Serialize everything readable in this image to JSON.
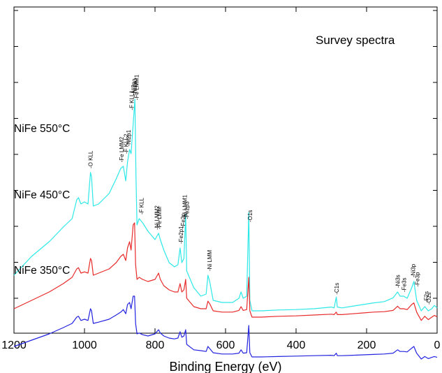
{
  "chart_data": {
    "type": "line",
    "title": "Survey spectra",
    "xlabel": "Binding Energy (eV)",
    "ylabel": "",
    "xlim": [
      1200,
      0
    ],
    "x_reversed": true,
    "x_ticks": [
      1200,
      1000,
      800,
      600,
      400,
      200,
      0
    ],
    "y_ticks_labeled": false,
    "series": [
      {
        "name": "NiFe 550°C",
        "color": "#2ee8e8",
        "points": [
          [
            1200,
            0.1
          ],
          [
            1150,
            0.145
          ],
          [
            1100,
            0.18
          ],
          [
            1060,
            0.215
          ],
          [
            1035,
            0.235
          ],
          [
            1022,
            0.28
          ],
          [
            1017,
            0.285
          ],
          [
            1010,
            0.27
          ],
          [
            1000,
            0.275
          ],
          [
            990,
            0.27
          ],
          [
            983,
            0.345
          ],
          [
            980,
            0.335
          ],
          [
            975,
            0.265
          ],
          [
            960,
            0.27
          ],
          [
            930,
            0.295
          ],
          [
            910,
            0.33
          ],
          [
            897,
            0.355
          ],
          [
            890,
            0.36
          ],
          [
            883,
            0.325
          ],
          [
            878,
            0.37
          ],
          [
            872,
            0.4
          ],
          [
            868,
            0.39
          ],
          [
            862,
            0.46
          ],
          [
            857,
            0.52
          ],
          [
            854,
            0.34
          ],
          [
            851,
            0.22
          ],
          [
            845,
            0.235
          ],
          [
            835,
            0.225
          ],
          [
            820,
            0.205
          ],
          [
            800,
            0.185
          ],
          [
            790,
            0.2
          ],
          [
            785,
            0.185
          ],
          [
            775,
            0.16
          ],
          [
            760,
            0.13
          ],
          [
            745,
            0.12
          ],
          [
            735,
            0.125
          ],
          [
            729,
            0.165
          ],
          [
            724,
            0.13
          ],
          [
            718,
            0.14
          ],
          [
            713,
            0.245
          ],
          [
            710,
            0.11
          ],
          [
            690,
            0.07
          ],
          [
            670,
            0.05
          ],
          [
            655,
            0.055
          ],
          [
            650,
            0.1
          ],
          [
            645,
            0.085
          ],
          [
            635,
            0.04
          ],
          [
            610,
            0.035
          ],
          [
            580,
            0.035
          ],
          [
            562,
            0.045
          ],
          [
            556,
            0.06
          ],
          [
            550,
            0.045
          ],
          [
            540,
            0.05
          ],
          [
            534,
            0.25
          ],
          [
            531,
            0.04
          ],
          [
            525,
            0.015
          ],
          [
            500,
            0.015
          ],
          [
            450,
            0.017
          ],
          [
            400,
            0.018
          ],
          [
            350,
            0.02
          ],
          [
            300,
            0.024
          ],
          [
            292,
            0.022
          ],
          [
            286,
            0.048
          ],
          [
            283,
            0.024
          ],
          [
            270,
            0.022
          ],
          [
            240,
            0.026
          ],
          [
            210,
            0.03
          ],
          [
            180,
            0.034
          ],
          [
            150,
            0.037
          ],
          [
            125,
            0.046
          ],
          [
            112,
            0.06
          ],
          [
            105,
            0.05
          ],
          [
            95,
            0.05
          ],
          [
            85,
            0.045
          ],
          [
            72,
            0.07
          ],
          [
            66,
            0.085
          ],
          [
            58,
            0.04
          ],
          [
            45,
            0.015
          ],
          [
            35,
            0.025
          ],
          [
            25,
            0.015
          ],
          [
            15,
            0.02
          ],
          [
            8,
            0.028
          ],
          [
            0,
            0.022
          ]
        ]
      },
      {
        "name": "NiFe 450°C",
        "color": "#e82a2a",
        "points": [
          [
            1200,
            0.02
          ],
          [
            1150,
            0.04
          ],
          [
            1100,
            0.06
          ],
          [
            1060,
            0.08
          ],
          [
            1035,
            0.095
          ],
          [
            1022,
            0.115
          ],
          [
            1017,
            0.118
          ],
          [
            1010,
            0.105
          ],
          [
            1000,
            0.108
          ],
          [
            990,
            0.105
          ],
          [
            983,
            0.14
          ],
          [
            980,
            0.135
          ],
          [
            975,
            0.1
          ],
          [
            960,
            0.105
          ],
          [
            930,
            0.115
          ],
          [
            910,
            0.13
          ],
          [
            897,
            0.145
          ],
          [
            890,
            0.15
          ],
          [
            883,
            0.135
          ],
          [
            878,
            0.165
          ],
          [
            872,
            0.18
          ],
          [
            868,
            0.16
          ],
          [
            862,
            0.22
          ],
          [
            858,
            0.225
          ],
          [
            855,
            0.125
          ],
          [
            851,
            0.09
          ],
          [
            845,
            0.095
          ],
          [
            835,
            0.09
          ],
          [
            820,
            0.085
          ],
          [
            800,
            0.09
          ],
          [
            790,
            0.105
          ],
          [
            785,
            0.09
          ],
          [
            775,
            0.075
          ],
          [
            760,
            0.065
          ],
          [
            745,
            0.06
          ],
          [
            735,
            0.06
          ],
          [
            729,
            0.08
          ],
          [
            724,
            0.06
          ],
          [
            718,
            0.065
          ],
          [
            713,
            0.09
          ],
          [
            710,
            0.045
          ],
          [
            690,
            0.025
          ],
          [
            670,
            0.02
          ],
          [
            655,
            0.02
          ],
          [
            650,
            0.038
          ],
          [
            645,
            0.032
          ],
          [
            635,
            0.015
          ],
          [
            610,
            0.012
          ],
          [
            580,
            0.012
          ],
          [
            562,
            0.016
          ],
          [
            556,
            0.025
          ],
          [
            550,
            0.016
          ],
          [
            540,
            0.018
          ],
          [
            534,
            0.095
          ],
          [
            531,
            0.015
          ],
          [
            525,
            0.0
          ],
          [
            500,
            0.0
          ],
          [
            450,
            0.002
          ],
          [
            400,
            0.003
          ],
          [
            350,
            0.005
          ],
          [
            300,
            0.007
          ],
          [
            292,
            0.006
          ],
          [
            286,
            0.012
          ],
          [
            283,
            0.006
          ],
          [
            270,
            0.006
          ],
          [
            240,
            0.008
          ],
          [
            210,
            0.01
          ],
          [
            180,
            0.012
          ],
          [
            150,
            0.013
          ],
          [
            125,
            0.016
          ],
          [
            112,
            0.026
          ],
          [
            105,
            0.02
          ],
          [
            95,
            0.02
          ],
          [
            85,
            0.018
          ],
          [
            72,
            0.03
          ],
          [
            66,
            0.034
          ],
          [
            58,
            0.012
          ],
          [
            45,
            -0.008
          ],
          [
            35,
            0.002
          ],
          [
            25,
            -0.006
          ],
          [
            15,
            0.0
          ],
          [
            8,
            0.004
          ],
          [
            0,
            0.001
          ]
        ]
      },
      {
        "name": "NiFe 350°C",
        "color": "#2323e0",
        "points": [
          [
            1200,
            -0.07
          ],
          [
            1150,
            -0.055
          ],
          [
            1100,
            -0.04
          ],
          [
            1060,
            -0.025
          ],
          [
            1035,
            -0.015
          ],
          [
            1022,
            0.0
          ],
          [
            1017,
            0.002
          ],
          [
            1010,
            -0.008
          ],
          [
            1000,
            -0.005
          ],
          [
            990,
            -0.008
          ],
          [
            983,
            0.02
          ],
          [
            980,
            0.015
          ],
          [
            975,
            -0.015
          ],
          [
            960,
            -0.012
          ],
          [
            930,
            -0.005
          ],
          [
            910,
            0.005
          ],
          [
            897,
            0.012
          ],
          [
            890,
            0.018
          ],
          [
            883,
            0.008
          ],
          [
            878,
            0.03
          ],
          [
            872,
            0.035
          ],
          [
            868,
            0.02
          ],
          [
            862,
            0.05
          ],
          [
            858,
            0.05
          ],
          [
            855,
            -0.015
          ],
          [
            851,
            -0.04
          ],
          [
            845,
            -0.038
          ],
          [
            835,
            -0.042
          ],
          [
            820,
            -0.045
          ],
          [
            800,
            -0.04
          ],
          [
            790,
            -0.03
          ],
          [
            785,
            -0.038
          ],
          [
            775,
            -0.045
          ],
          [
            760,
            -0.05
          ],
          [
            745,
            -0.052
          ],
          [
            735,
            -0.05
          ],
          [
            729,
            -0.035
          ],
          [
            724,
            -0.048
          ],
          [
            718,
            -0.045
          ],
          [
            713,
            -0.03
          ],
          [
            710,
            -0.065
          ],
          [
            690,
            -0.078
          ],
          [
            670,
            -0.08
          ],
          [
            655,
            -0.082
          ],
          [
            650,
            -0.07
          ],
          [
            645,
            -0.075
          ],
          [
            635,
            -0.085
          ],
          [
            610,
            -0.088
          ],
          [
            580,
            -0.088
          ],
          [
            562,
            -0.086
          ],
          [
            556,
            -0.078
          ],
          [
            550,
            -0.086
          ],
          [
            540,
            -0.085
          ],
          [
            534,
            -0.02
          ],
          [
            531,
            -0.085
          ],
          [
            525,
            -0.095
          ],
          [
            500,
            -0.095
          ],
          [
            450,
            -0.094
          ],
          [
            400,
            -0.093
          ],
          [
            350,
            -0.092
          ],
          [
            300,
            -0.091
          ],
          [
            292,
            -0.092
          ],
          [
            286,
            -0.086
          ],
          [
            283,
            -0.092
          ],
          [
            270,
            -0.092
          ],
          [
            240,
            -0.091
          ],
          [
            210,
            -0.09
          ],
          [
            180,
            -0.089
          ],
          [
            150,
            -0.088
          ],
          [
            125,
            -0.086
          ],
          [
            112,
            -0.078
          ],
          [
            105,
            -0.082
          ],
          [
            95,
            -0.082
          ],
          [
            85,
            -0.083
          ],
          [
            72,
            -0.074
          ],
          [
            66,
            -0.07
          ],
          [
            58,
            -0.086
          ],
          [
            45,
            -0.1
          ],
          [
            35,
            -0.094
          ],
          [
            25,
            -0.099
          ],
          [
            15,
            -0.096
          ],
          [
            8,
            -0.094
          ],
          [
            0,
            -0.096
          ]
        ]
      }
    ],
    "peak_labels": [
      {
        "text": "-O KLL",
        "x": 983
      },
      {
        "text": "-Fe LMM2",
        "x": 895
      },
      {
        "text": "-F KLL2",
        "x": 882
      },
      {
        "text": "-Ni2p1",
        "x": 875
      },
      {
        "text": "-F KLL1",
        "x": 866
      },
      {
        "text": "-Ni2p",
        "x": 861
      },
      {
        "text": "-Ni2p3",
        "x": 857
      },
      {
        "text": "-Fe LMM1",
        "x": 852
      },
      {
        "text": "-F KLL",
        "x": 839
      },
      {
        "text": "-Ni LMM2",
        "x": 795
      },
      {
        "text": "-Fe LMM",
        "x": 788
      },
      {
        "text": "-Fe2p1",
        "x": 727
      },
      {
        "text": "-Fe2p",
        "x": 721
      },
      {
        "text": "-Ni LMM1",
        "x": 716
      },
      {
        "text": "-Fe2p3",
        "x": 710
      },
      {
        "text": "-Ni LMM",
        "x": 646
      },
      {
        "text": "-O1s",
        "x": 531
      },
      {
        "text": "-C1s",
        "x": 285
      },
      {
        "text": "-Ni3s",
        "x": 112
      },
      {
        "text": "-Fe3s",
        "x": 94
      },
      {
        "text": "-Ni3p",
        "x": 68
      },
      {
        "text": "-Fe3p",
        "x": 56
      },
      {
        "text": "-F2s",
        "x": 31
      },
      {
        "text": "-O2s",
        "x": 24
      }
    ]
  }
}
